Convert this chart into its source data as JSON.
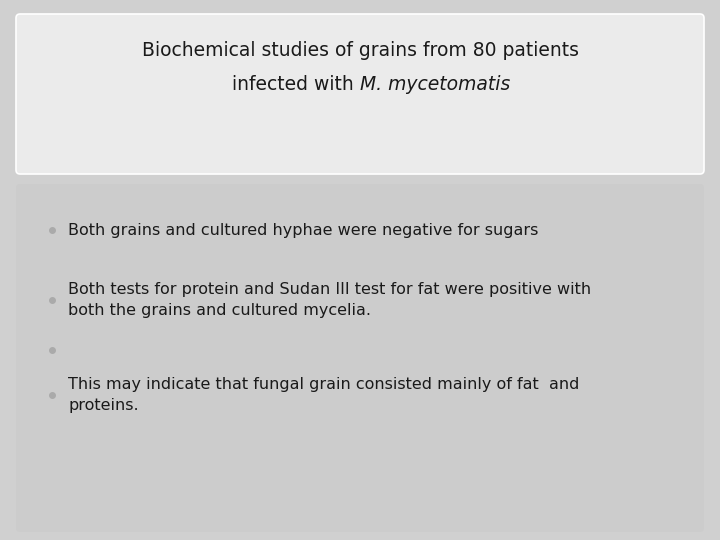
{
  "bg_color": "#d0d0d0",
  "title_box_color": "#ebebeb",
  "title_box_edge_color": "#ffffff",
  "content_box_color": "#cccccc",
  "title_line1": "Biochemical studies of grains from 80 patients",
  "title_line2_normal": "infected with ",
  "title_line2_italic": "M. mycetomatis",
  "bullet_color": "#aaaaaa",
  "text_color": "#1a1a1a",
  "bullet_texts": [
    "Both grains and cultured hyphae were negative for sugars",
    "Both tests for protein and Sudan III test for fat were positive with\nboth the grains and cultured mycelia.",
    "",
    "This may indicate that fungal grain consisted mainly of fat  and\nproteins."
  ],
  "title_fontsize": 13.5,
  "body_fontsize": 11.5,
  "fig_width": 7.2,
  "fig_height": 5.4,
  "dpi": 100
}
